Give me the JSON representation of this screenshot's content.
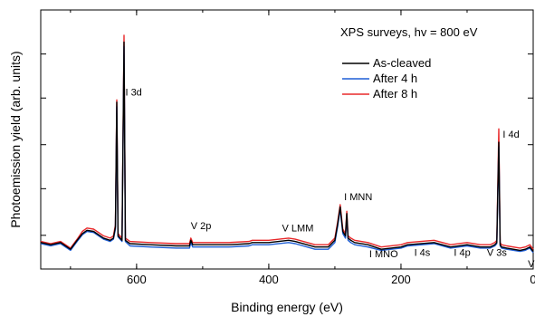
{
  "chart_data": {
    "type": "line",
    "title": "XPS surveys, hv = 800 eV",
    "xlabel": "Binding energy (eV)",
    "ylabel": "Photoemission yield (arb. units)",
    "xlim": [
      745,
      0
    ],
    "ylim": [
      0,
      100
    ],
    "x_ticks": [
      "600",
      "400",
      "200",
      "0"
    ],
    "x_tick_values": [
      600,
      400,
      200,
      0
    ],
    "y_tick_labels_shown": false,
    "grid": false,
    "legend_position": "top-right",
    "colors": {
      "As-cleaved": "#000000",
      "After 4 h": "#1f5fd6",
      "After 8 h": "#e8282a"
    },
    "series": [
      {
        "name": "As-cleaved",
        "x": [
          745,
          730,
          715,
          700,
          690,
          682,
          675,
          665,
          650,
          640,
          635,
          632,
          630,
          628,
          622,
          619,
          617,
          610,
          580,
          540,
          520,
          518,
          515,
          500,
          460,
          430,
          425,
          400,
          370,
          360,
          330,
          310,
          300,
          296,
          292,
          288,
          284,
          282,
          280,
          276,
          270,
          250,
          230,
          200,
          190,
          150,
          125,
          100,
          80,
          65,
          58,
          55,
          52,
          50,
          48,
          40,
          20,
          12,
          5,
          0
        ],
        "y": [
          7,
          6,
          7,
          4,
          8,
          11,
          12.5,
          12,
          9,
          8,
          9,
          14,
          70,
          10,
          8,
          97,
          8,
          6.5,
          6,
          5.5,
          5.5,
          8,
          6,
          6,
          6,
          6.5,
          7,
          7,
          8,
          7.5,
          5,
          5,
          8,
          15,
          23,
          12,
          10,
          20,
          9,
          8,
          7,
          6,
          4,
          5,
          6,
          7,
          5,
          6,
          5,
          5,
          6,
          7,
          52,
          6,
          5,
          4.5,
          3.5,
          4,
          5,
          3
        ]
      },
      {
        "name": "After 4 h",
        "x": [
          745,
          730,
          715,
          700,
          690,
          682,
          675,
          665,
          650,
          640,
          635,
          632,
          630,
          628,
          622,
          619,
          617,
          610,
          580,
          540,
          520,
          518,
          515,
          500,
          460,
          430,
          425,
          400,
          370,
          360,
          330,
          310,
          300,
          296,
          292,
          288,
          284,
          282,
          280,
          276,
          270,
          250,
          230,
          200,
          190,
          150,
          125,
          100,
          80,
          65,
          58,
          55,
          52,
          50,
          48,
          40,
          20,
          12,
          5,
          0
        ],
        "y": [
          6.5,
          5.5,
          6.5,
          3.5,
          7.5,
          10.5,
          12,
          11.5,
          8.5,
          7.5,
          8.5,
          13,
          68,
          9.5,
          7.5,
          95,
          7.5,
          5.5,
          5,
          4.5,
          4.5,
          7,
          5,
          5,
          5,
          5.5,
          6,
          6,
          7,
          6.5,
          4,
          4,
          7,
          14,
          22,
          11,
          9,
          19,
          8,
          7,
          6,
          5,
          3.5,
          4.5,
          5.5,
          6.5,
          4.5,
          5.5,
          4.5,
          4.5,
          5.5,
          6.5,
          50,
          5.5,
          4.5,
          4,
          3,
          3.5,
          4.5,
          2.5
        ]
      },
      {
        "name": "After 8 h",
        "x": [
          745,
          730,
          715,
          700,
          690,
          682,
          675,
          665,
          650,
          640,
          635,
          632,
          630,
          628,
          622,
          619,
          617,
          610,
          580,
          540,
          520,
          518,
          515,
          500,
          460,
          430,
          425,
          400,
          370,
          360,
          330,
          310,
          300,
          296,
          292,
          288,
          284,
          282,
          280,
          276,
          270,
          250,
          230,
          200,
          190,
          150,
          125,
          100,
          80,
          65,
          58,
          55,
          52,
          50,
          48,
          40,
          20,
          12,
          5,
          0
        ],
        "y": [
          7.5,
          6.5,
          7.5,
          4.5,
          8.5,
          12,
          13.5,
          13,
          10,
          9,
          10,
          15,
          71,
          11,
          9,
          100,
          9,
          7.5,
          7,
          6.5,
          6.5,
          9,
          7,
          7,
          7,
          7.5,
          8,
          8,
          9,
          8.5,
          6,
          6,
          9,
          16,
          24,
          13,
          11,
          21,
          10,
          9,
          8,
          7,
          5,
          6,
          7,
          8,
          6,
          7,
          6,
          6,
          7,
          8,
          58,
          7,
          6,
          5.5,
          4.5,
          5,
          6,
          4
        ]
      }
    ],
    "annotations": [
      {
        "text": "I 3d",
        "x": 617,
        "y": 73
      },
      {
        "text": "V 2p",
        "x": 518,
        "y": 13
      },
      {
        "text": "V LMM",
        "x": 380,
        "y": 12
      },
      {
        "text": "I MNN",
        "x": 286,
        "y": 26
      },
      {
        "text": "I MNO",
        "x": 248,
        "y": 0.5
      },
      {
        "text": "I 4s",
        "x": 180,
        "y": 1
      },
      {
        "text": "I 4p",
        "x": 120,
        "y": 1
      },
      {
        "text": "V 3s",
        "x": 70,
        "y": 1
      },
      {
        "text": "I 4d",
        "x": 46,
        "y": 54
      },
      {
        "text": "VB",
        "x": 8,
        "y": -4
      }
    ]
  }
}
